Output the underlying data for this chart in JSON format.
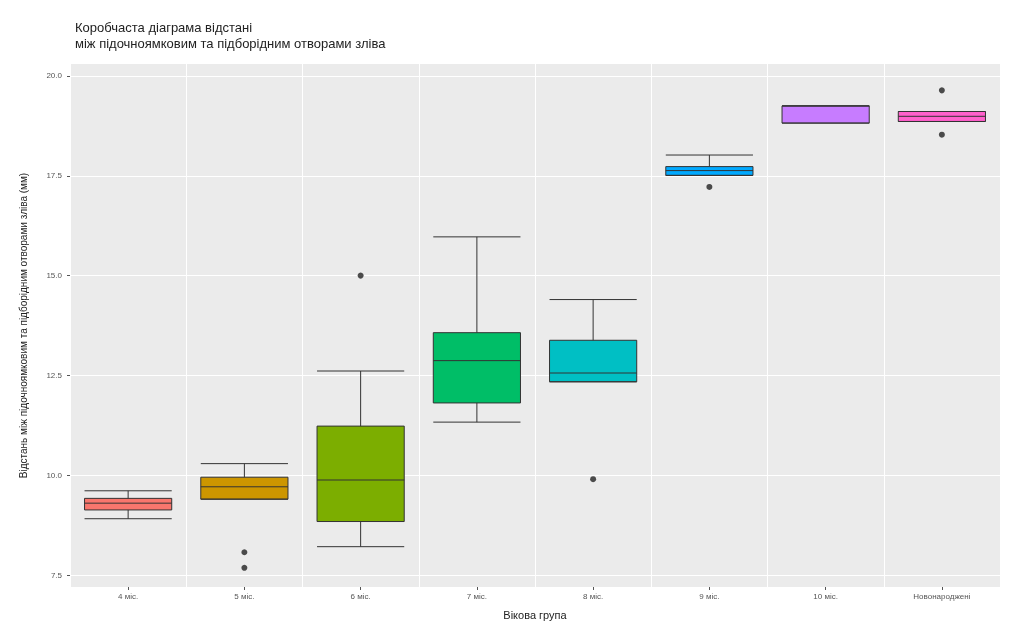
{
  "chart_data": {
    "type": "box",
    "title": "Коробчаста діаграма відстані\nміж підочноямковим та підборідним отворами зліва",
    "xlabel": "Вікова група",
    "ylabel": "Відстань між підочноямковим та підборідним отворами зліва (мм)",
    "categories": [
      "4 міс.",
      "5 міс.",
      "6 міс.",
      "7 міс.",
      "8 міс.",
      "9 міс.",
      "10 міс.",
      "Новонароджені"
    ],
    "boxes": [
      {
        "low": 8.91,
        "q1": 9.13,
        "median": 9.3,
        "q3": 9.42,
        "high": 9.61
      },
      {
        "low": 9.4,
        "q1": 9.4,
        "median": 9.71,
        "q3": 9.95,
        "high": 10.29,
        "outliers": [
          8.07,
          7.68
        ]
      },
      {
        "low": 8.21,
        "q1": 8.84,
        "median": 9.88,
        "q3": 11.23,
        "high": 12.61,
        "outliers": [
          15.0
        ]
      },
      {
        "low": 11.33,
        "q1": 11.81,
        "median": 12.87,
        "q3": 13.57,
        "high": 15.97
      },
      {
        "low": 12.34,
        "q1": 12.34,
        "median": 12.56,
        "q3": 13.38,
        "high": 14.4,
        "outliers": [
          9.9
        ]
      },
      {
        "low": 17.51,
        "q1": 17.51,
        "median": 17.63,
        "q3": 17.73,
        "high": 18.02,
        "outliers": [
          17.22
        ]
      },
      {
        "low": 18.82,
        "q1": 18.82,
        "median": 19.25,
        "q3": 19.25,
        "high": 19.25
      },
      {
        "low": 18.86,
        "q1": 18.86,
        "median": 18.99,
        "q3": 19.11,
        "high": 19.11,
        "outliers": [
          19.64,
          18.53
        ]
      }
    ],
    "colors": [
      "#f8766d",
      "#cd9600",
      "#7cae00",
      "#00be67",
      "#00bfc4",
      "#00a9ff",
      "#c77cff",
      "#ff61cc"
    ],
    "ylim": [
      7.2,
      20.3
    ],
    "yticks": [
      7.5,
      {
        "value": 10,
        "label": "10.0"
      },
      12.5,
      {
        "value": 15,
        "label": "15.0"
      },
      17.5,
      {
        "value": 20,
        "label": "20.0"
      }
    ],
    "grid": true
  }
}
